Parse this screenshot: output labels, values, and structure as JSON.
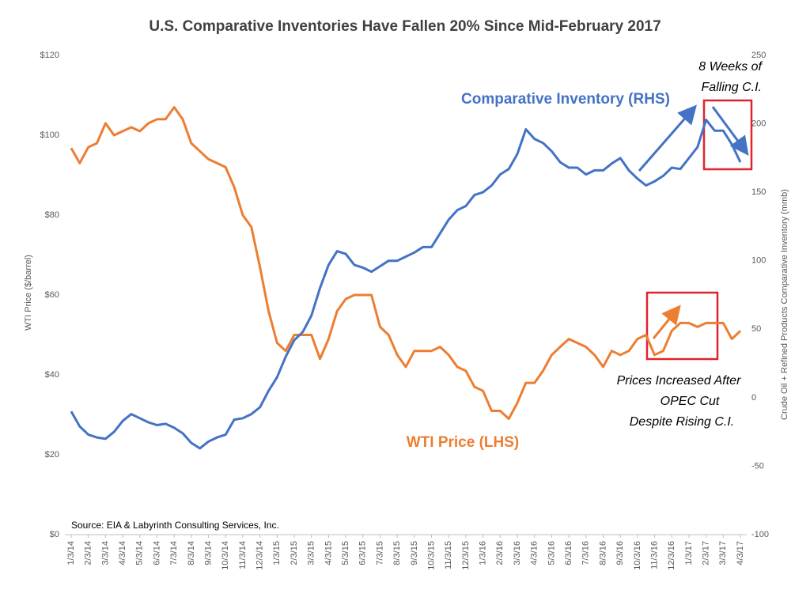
{
  "chart_data": {
    "type": "line",
    "title": "U.S. Comparative Inventories Have Fallen 20% Since Mid-February 2017",
    "ylabel": "WTI Price ($/barrel)",
    "y2label": "Crude Oil + Refined Products Comparative Inventory (mmb)",
    "source": "Source: EIA & Labyrinth Consulting Services, Inc.",
    "categories": [
      "1/3/14",
      null,
      "2/3/14",
      null,
      "3/3/14",
      null,
      "4/3/14",
      null,
      "5/3/14",
      null,
      "6/3/14",
      null,
      "7/3/14",
      null,
      "8/3/14",
      null,
      "9/3/14",
      null,
      "10/3/14",
      null,
      "11/3/14",
      null,
      "12/3/14",
      null,
      "1/3/15",
      null,
      "2/3/15",
      null,
      "3/3/15",
      null,
      "4/3/15",
      null,
      "5/3/15",
      null,
      "6/3/15",
      null,
      "7/3/15",
      null,
      "8/3/15",
      null,
      "9/3/15",
      null,
      "10/3/15",
      null,
      "11/3/15",
      null,
      "12/3/15",
      null,
      "1/3/16",
      null,
      "2/3/16",
      null,
      "3/3/16",
      null,
      "4/3/16",
      null,
      "5/3/16",
      null,
      "6/3/16",
      null,
      "7/3/16",
      null,
      "8/3/16",
      null,
      "9/3/16",
      null,
      "10/3/16",
      null,
      "11/3/16",
      null,
      "12/3/16",
      null,
      "1/3/17",
      null,
      "2/3/17",
      null,
      "3/3/17",
      null,
      "4/3/17"
    ],
    "series": [
      {
        "name": "WTI Price (LHS)",
        "color": "#ed7d31",
        "axis": "y",
        "values": [
          96.8,
          93,
          97,
          98,
          103,
          100,
          101,
          102,
          101,
          103,
          104,
          104,
          107,
          104,
          98,
          96,
          94,
          93,
          92,
          87,
          80,
          77,
          67,
          56,
          48,
          46,
          50,
          50,
          50,
          44,
          49,
          56,
          59,
          60,
          60,
          60,
          52,
          50,
          45,
          42,
          46,
          46,
          46,
          47,
          45,
          42,
          41,
          37,
          36,
          31,
          31,
          29,
          33,
          38,
          38,
          41,
          45,
          47,
          49,
          48,
          47,
          45,
          42,
          46,
          45,
          46,
          49,
          50,
          45,
          46,
          51,
          53,
          53,
          52,
          53,
          53,
          53,
          49,
          51
        ]
      },
      {
        "name": "Comparative Inventory (RHS)",
        "color": "#4472c4",
        "axis": "y2",
        "values": [
          -10,
          -21,
          -27,
          -29,
          -30,
          -25,
          -17,
          -12,
          -15,
          -18,
          -20,
          -19,
          -22,
          -26,
          -33,
          -37,
          -32,
          -29,
          -27,
          -16,
          -15,
          -12,
          -7,
          5,
          15,
          30,
          42,
          48,
          60,
          80,
          97,
          107,
          105,
          97,
          95,
          92,
          96,
          100,
          100,
          103,
          106,
          110,
          110,
          120,
          130,
          137,
          140,
          148,
          150,
          155,
          163,
          167,
          178,
          196,
          189,
          186,
          180,
          172,
          168,
          168,
          163,
          166,
          166,
          171,
          175,
          166,
          160,
          155,
          158,
          162,
          168,
          167,
          175,
          183,
          203,
          195,
          195,
          185,
          172
        ]
      }
    ],
    "ylim": [
      0,
      120
    ],
    "yticks": [
      {
        "value": 0,
        "label": "$0"
      },
      {
        "value": 20,
        "label": "$20"
      },
      {
        "value": 40,
        "label": "$40"
      },
      {
        "value": 60,
        "label": "$60"
      },
      {
        "value": 80,
        "label": "$80"
      },
      {
        "value": 100,
        "label": "$100"
      },
      {
        "value": 120,
        "label": "$120"
      }
    ],
    "y2lim": [
      -100,
      250
    ],
    "y2ticks": [
      -100,
      -50,
      0,
      50,
      100,
      150,
      200,
      250
    ],
    "annotations": [
      {
        "lines": [
          "8 Weeks of",
          "Falling C.I."
        ]
      },
      {
        "lines": [
          "Prices Increased After",
          "OPEC Cut",
          "Despite Rising C.I."
        ]
      }
    ]
  }
}
